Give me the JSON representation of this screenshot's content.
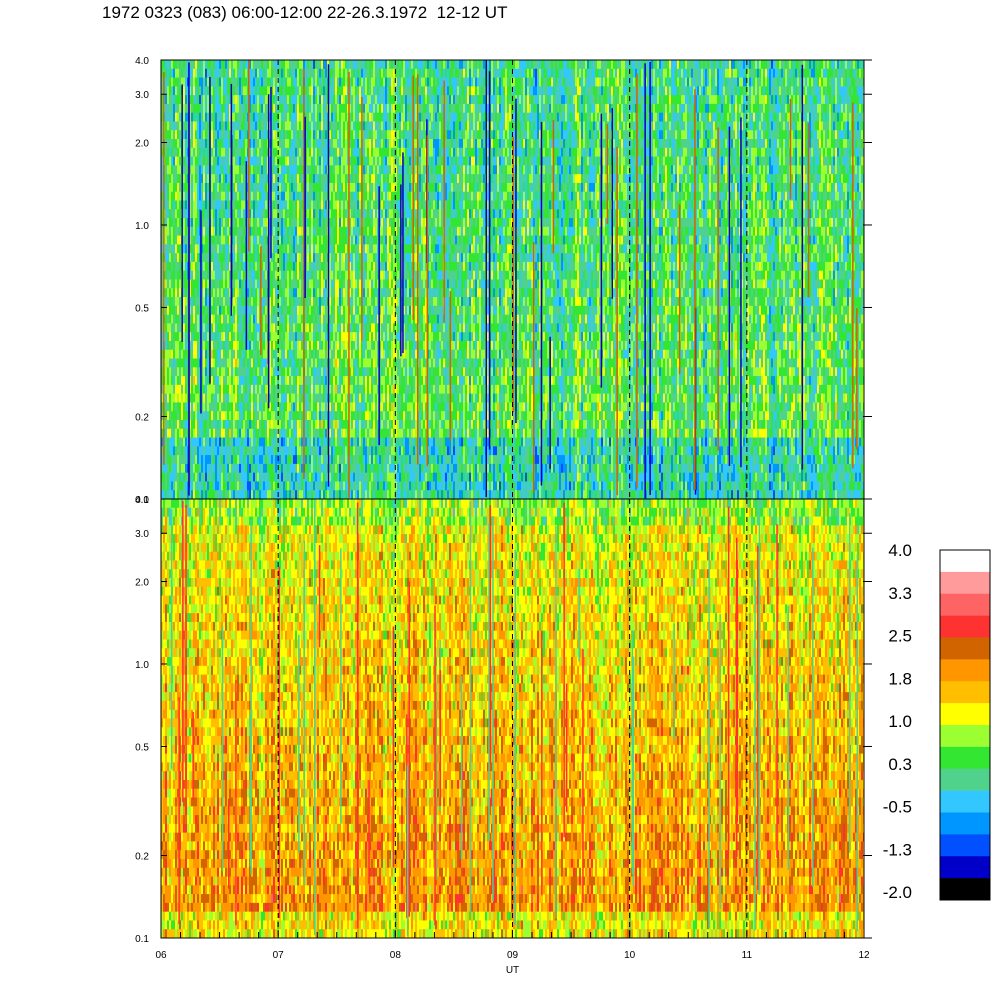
{
  "title": "1972 0323 (083) 06:00-12:00 22-26.3.1972  12-12 UT",
  "chart_data": [
    {
      "type": "heatmap",
      "panel": "upper",
      "x_range": [
        6,
        12
      ],
      "x_ticks": [
        "06",
        "07",
        "08",
        "09",
        "10",
        "11",
        "12"
      ],
      "y_scale": "log",
      "y_range": [
        0.1,
        4.0
      ],
      "y_ticks": [
        0.1,
        0.2,
        0.5,
        1.0,
        2.0,
        3.0,
        4.0
      ],
      "y_tick_labels": [
        "0.1",
        "0.2",
        "0.5",
        "1.0",
        "2.0",
        "3.0",
        "4.0"
      ],
      "dashed_hour_lines": [
        7,
        8,
        9,
        10,
        11
      ],
      "dominant_value_range": [
        -1.3,
        1.0
      ]
    },
    {
      "type": "heatmap",
      "panel": "lower",
      "x_range": [
        6,
        12
      ],
      "x_ticks": [
        "06",
        "07",
        "08",
        "09",
        "10",
        "11",
        "12"
      ],
      "y_scale": "log",
      "y_range": [
        0.1,
        4.0
      ],
      "y_ticks": [
        0.1,
        0.2,
        0.5,
        1.0,
        2.0,
        3.0,
        4.0
      ],
      "y_tick_labels": [
        "0.1",
        "0.2",
        "0.5",
        "1.0",
        "2.0",
        "3.0",
        "4.0"
      ],
      "dashed_hour_lines": [
        7,
        8,
        9,
        10,
        11
      ],
      "dominant_value_range": [
        0.3,
        2.5
      ]
    }
  ],
  "x_axis": {
    "label": "UT",
    "tick_labels": [
      "06",
      "07",
      "08",
      "09",
      "10",
      "11",
      "12"
    ]
  },
  "colorbar": {
    "labels": [
      "4.0",
      "3.3",
      "2.5",
      "1.8",
      "1.0",
      "0.3",
      "-0.5",
      "-1.3",
      "-2.0"
    ],
    "colors_top_to_bottom": [
      "#ffffff",
      "#ff9b9b",
      "#ff6464",
      "#ff3232",
      "#d26400",
      "#ff9600",
      "#ffbe00",
      "#ffff00",
      "#9bff32",
      "#32e632",
      "#50d28c",
      "#32c8ff",
      "#0096ff",
      "#0050ff",
      "#0000c8",
      "#000000"
    ]
  }
}
